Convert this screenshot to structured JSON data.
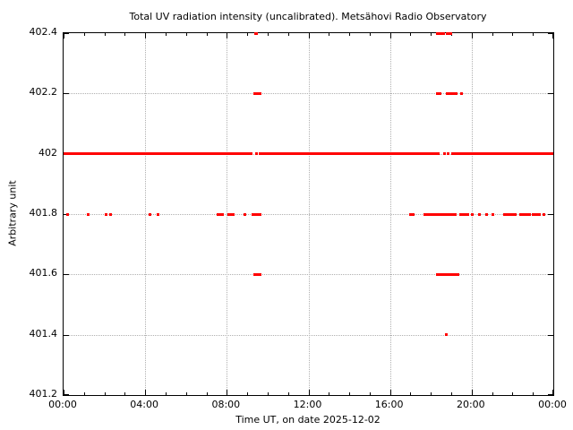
{
  "title": "Total UV radiation intensity (uncalibrated). Metsähovi Radio Observatory",
  "chart_data": {
    "type": "scatter",
    "title": "Total UV radiation intensity (uncalibrated). Metsähovi Radio Observatory",
    "xlabel": "Time UT, on date 2025-12-02",
    "ylabel": "Arbitrary unit",
    "xlim_hours": [
      0,
      24
    ],
    "ylim": [
      401.2,
      402.4
    ],
    "grid": true,
    "legend": "none",
    "colors": {
      "marker": "#ff0000",
      "axis": "#000000",
      "grid": "#b0b0b0",
      "background": "#ffffff"
    },
    "x_ticks": [
      {
        "hour": 0,
        "label": "00:00"
      },
      {
        "hour": 4,
        "label": "04:00"
      },
      {
        "hour": 8,
        "label": "08:00"
      },
      {
        "hour": 12,
        "label": "12:00"
      },
      {
        "hour": 16,
        "label": "16:00"
      },
      {
        "hour": 20,
        "label": "20:00"
      },
      {
        "hour": 24,
        "label": "00:00"
      }
    ],
    "x_minor_tick_interval_hours": 1,
    "y_ticks": [
      {
        "value": 402.4,
        "label": "402.4"
      },
      {
        "value": 402.2,
        "label": "402.2"
      },
      {
        "value": 402.0,
        "label": "402"
      },
      {
        "value": 401.8,
        "label": "401.8"
      },
      {
        "value": 401.6,
        "label": "401.6"
      },
      {
        "value": 401.4,
        "label": "401.4"
      },
      {
        "value": 401.2,
        "label": "401.2"
      }
    ],
    "grid_x_hours": [
      4,
      8,
      12,
      16,
      20
    ],
    "grid_y_values": [
      401.4,
      401.6,
      401.8,
      402.0,
      402.2
    ],
    "series": [
      {
        "name": "uv-baseline-402",
        "type": "hline_segments",
        "value": 402.0,
        "segments_hours": [
          [
            0.0,
            9.26
          ],
          [
            9.4,
            9.49
          ],
          [
            9.56,
            18.43
          ],
          [
            18.6,
            18.7
          ],
          [
            18.8,
            18.9
          ],
          [
            19.0,
            24.0
          ]
        ]
      },
      {
        "name": "uv-points-402.4",
        "type": "points",
        "value": 402.4,
        "times_hours": [
          9.42,
          9.47,
          18.34,
          18.43,
          18.52,
          18.61,
          18.78,
          18.87,
          18.96
        ]
      },
      {
        "name": "uv-points-402.2",
        "type": "points",
        "value": 402.2,
        "times_hours": [
          9.35,
          9.43,
          9.52,
          9.61,
          18.34,
          18.43,
          18.78,
          18.87,
          18.96,
          19.05,
          19.13,
          19.22,
          19.52
        ]
      },
      {
        "name": "uv-points-401.8",
        "type": "points",
        "value": 401.8,
        "times_hours": [
          0.2,
          1.22,
          2.1,
          2.32,
          4.22,
          4.62,
          7.55,
          7.67,
          7.77,
          8.1,
          8.22,
          8.33,
          8.9,
          9.26,
          9.39,
          9.48,
          9.57,
          9.65,
          17.02,
          17.12,
          17.7,
          17.78,
          17.86,
          17.94,
          18.02,
          18.1,
          18.18,
          18.26,
          18.34,
          18.43,
          18.51,
          18.6,
          18.7,
          18.82,
          18.92,
          19.0,
          19.1,
          19.2,
          19.44,
          19.52,
          19.61,
          19.7,
          19.79,
          20.05,
          20.36,
          20.71,
          21.06,
          21.63,
          21.72,
          21.81,
          21.94,
          22.03,
          22.12,
          22.38,
          22.47,
          22.56,
          22.65,
          22.74,
          22.83,
          23.03,
          23.12,
          23.21,
          23.3,
          23.56
        ]
      },
      {
        "name": "uv-points-401.6",
        "type": "points",
        "value": 401.6,
        "times_hours": [
          9.35,
          9.43,
          9.52,
          9.61,
          18.3,
          18.39,
          18.48,
          18.57,
          18.66,
          18.78,
          18.87,
          18.96,
          19.05,
          19.13,
          19.22,
          19.31
        ]
      },
      {
        "name": "uv-points-401.4",
        "type": "points",
        "value": 401.4,
        "times_hours": [
          18.74
        ]
      }
    ]
  }
}
